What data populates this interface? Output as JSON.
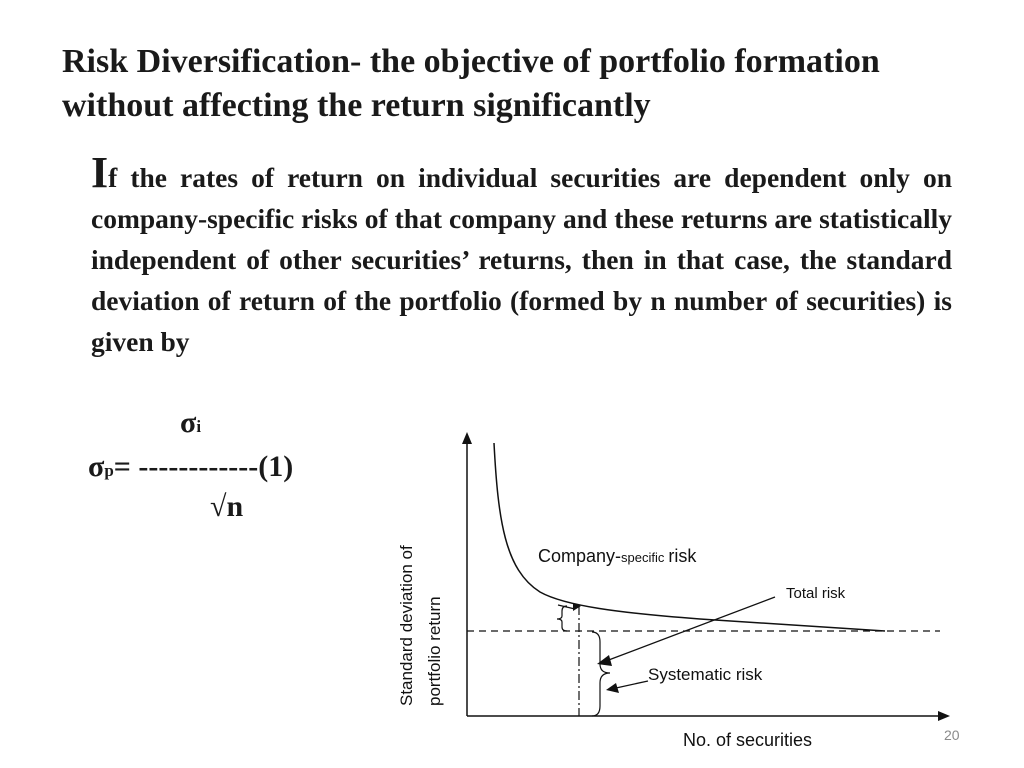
{
  "slide": {
    "title": "Risk Diversification- the objective of portfolio formation without affecting the return significantly",
    "body": {
      "dropcap": "I",
      "text": "f the rates of return on individual securities are dependent only on company-specific risks of that company and these returns are statistically independent of other securities’ returns, then in that case,  the standard deviation of return of the portfolio (formed by n number of securities) is given by"
    },
    "formula": {
      "numerator": "σ",
      "numerator_sub": "i",
      "lhs": "σ",
      "lhs_sub": "p",
      "equals_dashes": "= ------------(1)",
      "denominator": "√n"
    },
    "page_number": "20"
  },
  "diagram": {
    "y_axis_label_line1": "Standard deviation of",
    "y_axis_label_line2": "portfolio return",
    "x_axis_label": "No. of securities",
    "label_company_prefix": "Company-",
    "label_company_specific": "specific",
    "label_company_risk": "risk",
    "label_total": "Total risk",
    "label_systematic": "Systematic risk",
    "colors": {
      "line": "#111111",
      "background": "#ffffff"
    }
  }
}
